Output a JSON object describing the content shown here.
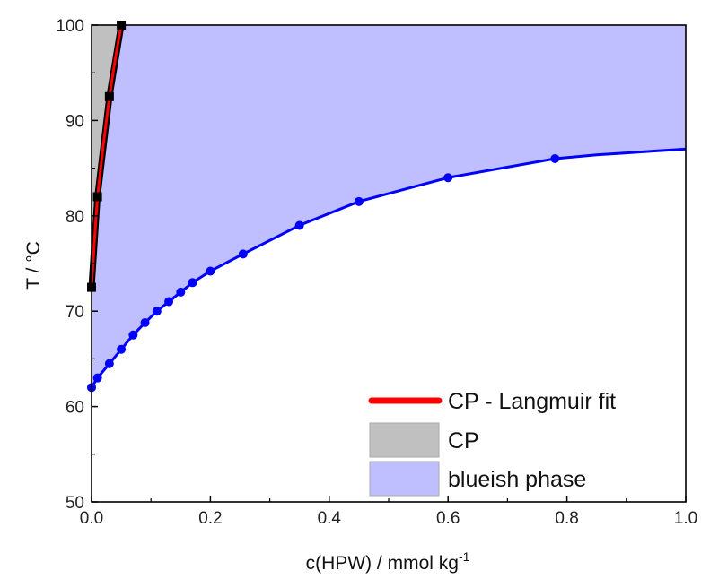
{
  "chart_data": {
    "type": "line",
    "xlabel": "c(HPW) / mmol kg",
    "xlabel_sup": "-1",
    "ylabel": "T / °C",
    "xlim": [
      0,
      1.0
    ],
    "ylim": [
      50,
      100
    ],
    "x_ticks": [
      "0.0",
      "0.2",
      "0.4",
      "0.6",
      "0.8",
      "1.0"
    ],
    "y_ticks": [
      "50",
      "60",
      "70",
      "80",
      "90",
      "100"
    ],
    "grid": false,
    "legend_position": "bottom-right",
    "legend": [
      {
        "label": "CP - Langmuir fit",
        "kind": "line",
        "color": "#ff0000"
      },
      {
        "label": "CP",
        "kind": "patch",
        "color": "#c0c0c0"
      },
      {
        "label": "blueish phase",
        "kind": "patch",
        "color": "#bfbfff"
      }
    ],
    "series": [
      {
        "name": "CP",
        "color": "#000000",
        "marker": "square",
        "x": [
          0.0,
          0.01,
          0.03,
          0.05
        ],
        "y": [
          72.5,
          82,
          92.5,
          100
        ]
      },
      {
        "name": "CP - Langmuir fit",
        "color": "#ff0000",
        "x": [
          0.0,
          0.005,
          0.01,
          0.02,
          0.03,
          0.04,
          0.05
        ],
        "y": [
          72.5,
          77.5,
          82,
          87.5,
          92.5,
          96.5,
          100
        ]
      },
      {
        "name": "blueish phase",
        "color": "#0000ff",
        "marker": "circle",
        "x": [
          0.0,
          0.01,
          0.03,
          0.05,
          0.07,
          0.09,
          0.11,
          0.13,
          0.15,
          0.17,
          0.2,
          0.255,
          0.35,
          0.45,
          0.6,
          0.78
        ],
        "y": [
          62,
          63,
          64.5,
          66,
          67.5,
          68.8,
          70,
          71,
          72,
          73,
          74.2,
          76,
          79,
          81.5,
          84,
          86
        ]
      },
      {
        "name": "blueish phase boundary (fit)",
        "color": "#0000ff",
        "x": [
          0.78,
          0.85,
          0.9,
          0.95,
          1.0
        ],
        "y": [
          86,
          86.4,
          86.6,
          86.8,
          87
        ]
      }
    ]
  }
}
